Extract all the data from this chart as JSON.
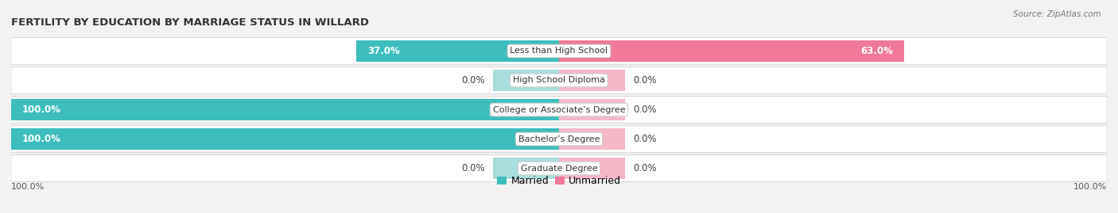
{
  "title": "FERTILITY BY EDUCATION BY MARRIAGE STATUS IN WILLARD",
  "source": "Source: ZipAtlas.com",
  "categories": [
    "Less than High School",
    "High School Diploma",
    "College or Associate’s Degree",
    "Bachelor’s Degree",
    "Graduate Degree"
  ],
  "married_values": [
    37.0,
    0.0,
    100.0,
    100.0,
    0.0
  ],
  "unmarried_values": [
    63.0,
    0.0,
    0.0,
    0.0,
    0.0
  ],
  "married_color": "#3dbdbd",
  "unmarried_color": "#f07898",
  "married_light_color": "#a8dede",
  "unmarried_light_color": "#f5b8c8",
  "background_color": "#f2f2f2",
  "row_bg_color": "#ffffff",
  "stub_value": 12,
  "bar_height": 0.72,
  "total_width": 100
}
